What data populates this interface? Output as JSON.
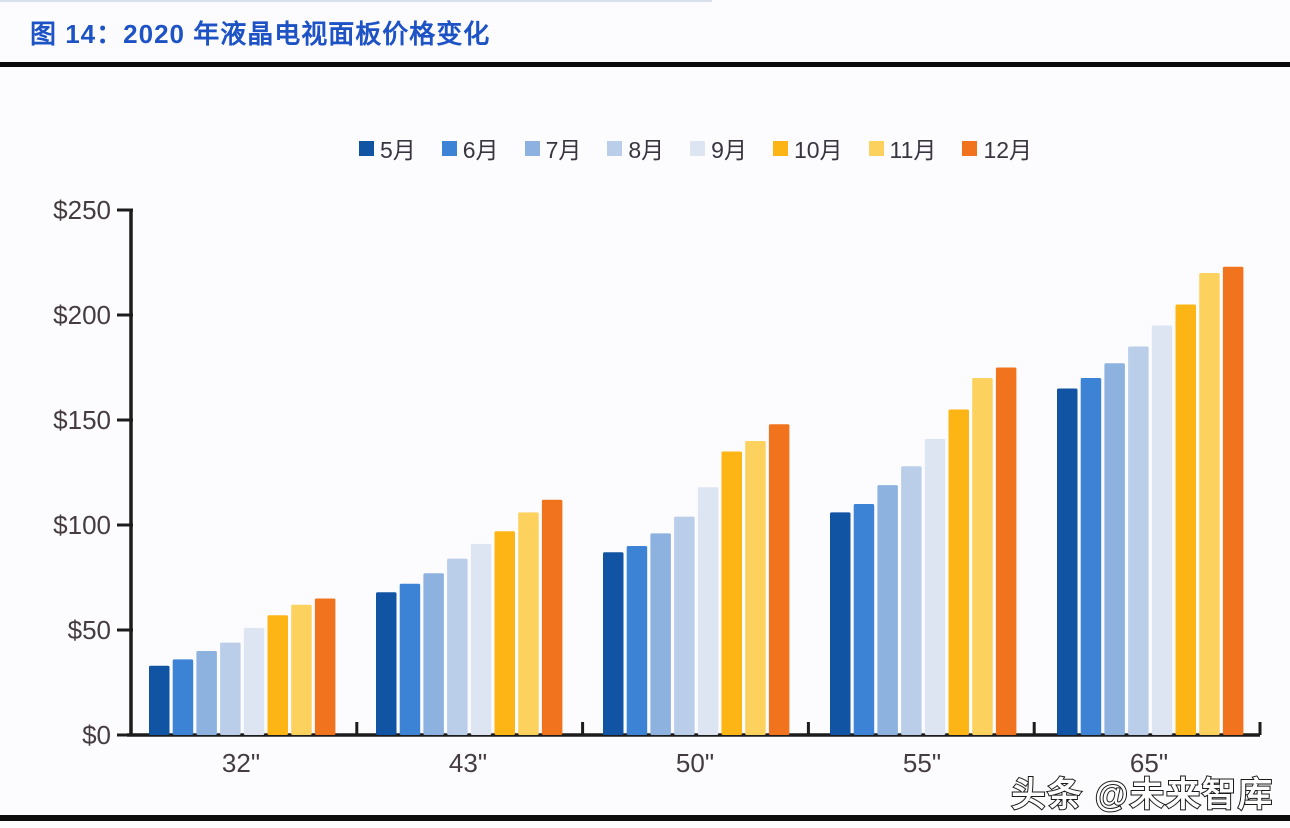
{
  "header": {
    "title": "图 14：2020 年液晶电视面板价格变化"
  },
  "footer": {
    "watermark": "头条 @未来智库"
  },
  "chart_data": {
    "type": "bar",
    "title": "2020 年液晶电视面板价格变化",
    "figure_label": "图 14",
    "xlabel": "",
    "ylabel": "",
    "ylim": [
      0,
      250
    ],
    "ytick_step": 50,
    "ytick_labels": [
      "$0",
      "$50",
      "$100",
      "$150",
      "$200",
      "$250"
    ],
    "grid": false,
    "legend_position": "top",
    "categories": [
      "32\"",
      "43\"",
      "50\"",
      "55\"",
      "65\""
    ],
    "series": [
      {
        "name": "5月",
        "color": "#1154A4",
        "values": [
          33,
          68,
          87,
          106,
          165
        ]
      },
      {
        "name": "6月",
        "color": "#3C83D6",
        "values": [
          36,
          72,
          90,
          110,
          170
        ]
      },
      {
        "name": "7月",
        "color": "#8DB2E0",
        "values": [
          40,
          77,
          96,
          119,
          177
        ]
      },
      {
        "name": "8月",
        "color": "#BACEEA",
        "values": [
          44,
          84,
          104,
          128,
          185
        ]
      },
      {
        "name": "9月",
        "color": "#DDE5F3",
        "values": [
          51,
          91,
          118,
          141,
          195
        ]
      },
      {
        "name": "10月",
        "color": "#FCB514",
        "values": [
          57,
          97,
          135,
          155,
          205
        ]
      },
      {
        "name": "11月",
        "color": "#FCD15E",
        "values": [
          62,
          106,
          140,
          170,
          220
        ]
      },
      {
        "name": "12月",
        "color": "#F2731D",
        "values": [
          65,
          112,
          148,
          175,
          223
        ]
      }
    ]
  }
}
